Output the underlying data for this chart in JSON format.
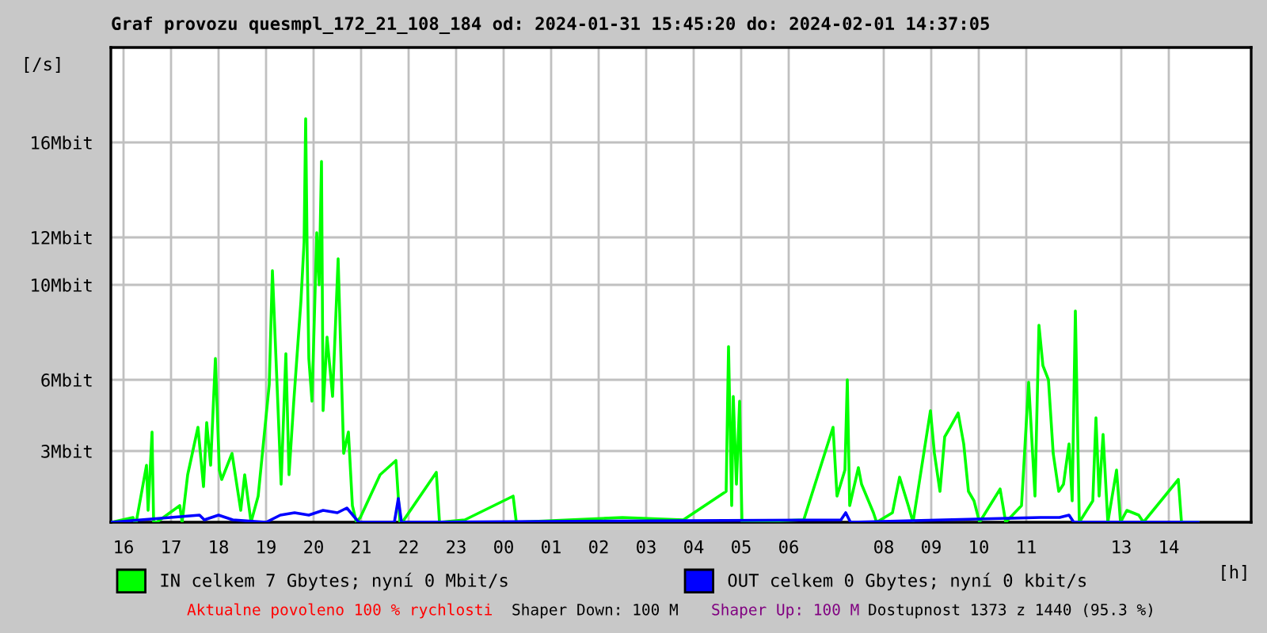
{
  "chart_data": {
    "type": "line",
    "title": "Graf provozu quesmpl_172_21_108_184 od: 2024-01-31 15:45:20 do: 2024-02-01 14:37:05",
    "xlabel": "[h]",
    "ylabel": "[/s]",
    "xlim": [
      "2024-01-31T15:44",
      "2024-02-01T15:44"
    ],
    "ylim": [
      0,
      20
    ],
    "xticks": [
      {
        "value": "2024-01-31T16:00",
        "label": "16"
      },
      {
        "value": "2024-01-31T17:00",
        "label": "17"
      },
      {
        "value": "2024-01-31T18:00",
        "label": "18"
      },
      {
        "value": "2024-01-31T19:00",
        "label": "19"
      },
      {
        "value": "2024-01-31T20:00",
        "label": "20"
      },
      {
        "value": "2024-01-31T21:00",
        "label": "21"
      },
      {
        "value": "2024-01-31T22:00",
        "label": "22"
      },
      {
        "value": "2024-01-31T23:00",
        "label": "23"
      },
      {
        "value": "2024-02-01T00:00",
        "label": "00"
      },
      {
        "value": "2024-02-01T01:00",
        "label": "01"
      },
      {
        "value": "2024-02-01T02:00",
        "label": "02"
      },
      {
        "value": "2024-02-01T03:00",
        "label": "03"
      },
      {
        "value": "2024-02-01T04:00",
        "label": "04"
      },
      {
        "value": "2024-02-01T05:00",
        "label": "05"
      },
      {
        "value": "2024-02-01T06:00",
        "label": "06"
      },
      {
        "value": "2024-02-01T08:00",
        "label": "08"
      },
      {
        "value": "2024-02-01T09:00",
        "label": "09"
      },
      {
        "value": "2024-02-01T10:00",
        "label": "10"
      },
      {
        "value": "2024-02-01T11:00",
        "label": "11"
      },
      {
        "value": "2024-02-01T13:00",
        "label": "13"
      },
      {
        "value": "2024-02-01T14:00",
        "label": "14"
      }
    ],
    "yticks": [
      {
        "value": 3,
        "label": "3Mbit"
      },
      {
        "value": 6,
        "label": "6Mbit"
      },
      {
        "value": 10,
        "label": "10Mbit"
      },
      {
        "value": 12,
        "label": "12Mbit"
      },
      {
        "value": 16,
        "label": "16Mbit"
      }
    ],
    "grid": true,
    "legend": "bottom",
    "series": [
      {
        "name": "IN celkem 7 Gbytes; nyní 0 Mbit/s",
        "color": "#00ff00",
        "x": [
          "2024-01-31T15:45",
          "2024-01-31T16:12",
          "2024-01-31T16:14",
          "2024-01-31T16:16",
          "2024-01-31T16:29",
          "2024-01-31T16:31",
          "2024-01-31T16:36",
          "2024-01-31T16:38",
          "2024-01-31T16:42",
          "2024-01-31T17:11",
          "2024-01-31T17:14",
          "2024-01-31T17:21",
          "2024-01-31T17:34",
          "2024-01-31T17:41",
          "2024-01-31T17:45",
          "2024-01-31T17:50",
          "2024-01-31T17:56",
          "2024-01-31T18:01",
          "2024-01-31T18:04",
          "2024-01-31T18:17",
          "2024-01-31T18:28",
          "2024-01-31T18:33",
          "2024-01-31T18:41",
          "2024-01-31T18:50",
          "2024-01-31T19:04",
          "2024-01-31T19:08",
          "2024-01-31T19:19",
          "2024-01-31T19:25",
          "2024-01-31T19:29",
          "2024-01-31T19:35",
          "2024-01-31T19:44",
          "2024-01-31T19:48",
          "2024-01-31T19:50",
          "2024-01-31T19:52",
          "2024-01-31T19:54",
          "2024-01-31T19:58",
          "2024-01-31T20:04",
          "2024-01-31T20:07",
          "2024-01-31T20:10",
          "2024-01-31T20:12",
          "2024-01-31T20:17",
          "2024-01-31T20:24",
          "2024-01-31T20:31",
          "2024-01-31T20:38",
          "2024-01-31T20:44",
          "2024-01-31T20:49",
          "2024-01-31T20:54",
          "2024-01-31T20:59",
          "2024-01-31T21:24",
          "2024-01-31T21:44",
          "2024-01-31T21:49",
          "2024-01-31T21:52",
          "2024-01-31T22:35",
          "2024-01-31T22:39",
          "2024-01-31T23:11",
          "2024-02-01T00:12",
          "2024-02-01T00:16",
          "2024-02-01T02:30",
          "2024-02-01T03:47",
          "2024-02-01T04:41",
          "2024-02-01T04:44",
          "2024-02-01T04:48",
          "2024-02-01T04:50",
          "2024-02-01T04:54",
          "2024-02-01T04:58",
          "2024-02-01T05:01",
          "2024-02-01T06:19",
          "2024-02-01T06:56",
          "2024-02-01T07:01",
          "2024-02-01T07:11",
          "2024-02-01T07:14",
          "2024-02-01T07:17",
          "2024-02-01T07:28",
          "2024-02-01T07:32",
          "2024-02-01T07:47",
          "2024-02-01T07:51",
          "2024-02-01T08:11",
          "2024-02-01T08:20",
          "2024-02-01T08:31",
          "2024-02-01T08:37",
          "2024-02-01T08:59",
          "2024-02-01T09:04",
          "2024-02-01T09:11",
          "2024-02-01T09:17",
          "2024-02-01T09:24",
          "2024-02-01T09:34",
          "2024-02-01T09:41",
          "2024-02-01T09:47",
          "2024-02-01T09:54",
          "2024-02-01T10:01",
          "2024-02-01T10:27",
          "2024-02-01T10:34",
          "2024-02-01T10:54",
          "2024-02-01T11:03",
          "2024-02-01T11:11",
          "2024-02-01T11:16",
          "2024-02-01T11:21",
          "2024-02-01T11:28",
          "2024-02-01T11:34",
          "2024-02-01T11:41",
          "2024-02-01T11:47",
          "2024-02-01T11:54",
          "2024-02-01T11:58",
          "2024-02-01T12:02",
          "2024-02-01T12:07",
          "2024-02-01T12:24",
          "2024-02-01T12:28",
          "2024-02-01T12:32",
          "2024-02-01T12:37",
          "2024-02-01T12:43",
          "2024-02-01T12:54",
          "2024-02-01T12:59",
          "2024-02-01T13:07",
          "2024-02-01T13:22",
          "2024-02-01T13:28",
          "2024-02-01T14:12",
          "2024-02-01T14:16",
          "2024-02-01T14:37"
        ],
        "values": [
          0,
          0.2,
          0,
          0,
          2.4,
          0.5,
          3.8,
          0,
          0,
          0.7,
          0,
          2.0,
          4.0,
          1.5,
          4.2,
          2.4,
          6.9,
          2.2,
          1.8,
          2.9,
          0.5,
          2.0,
          0,
          1.1,
          5.8,
          10.6,
          1.6,
          7.1,
          2.0,
          5.1,
          9.3,
          11.8,
          17.0,
          11.1,
          6.9,
          5.1,
          12.2,
          10.0,
          15.2,
          4.7,
          7.8,
          5.3,
          11.1,
          2.9,
          3.8,
          0.7,
          0,
          0.2,
          2.0,
          2.6,
          0,
          0,
          2.1,
          0,
          0.1,
          1.1,
          0,
          0.2,
          0.1,
          1.3,
          7.4,
          0.7,
          5.3,
          1.6,
          5.1,
          0,
          0.1,
          4.0,
          1.1,
          2.2,
          6.0,
          0.7,
          2.3,
          1.6,
          0.4,
          0,
          0.4,
          1.9,
          0.7,
          0,
          4.7,
          2.9,
          1.3,
          3.6,
          4.0,
          4.6,
          3.3,
          1.3,
          0.9,
          0,
          1.4,
          0,
          0.7,
          5.9,
          1.1,
          8.3,
          6.6,
          6.0,
          2.9,
          1.3,
          1.6,
          3.3,
          0.9,
          8.9,
          0,
          0.9,
          4.4,
          1.1,
          3.7,
          0,
          2.2,
          0,
          0.5,
          0.3,
          0,
          1.8,
          0,
          0
        ]
      },
      {
        "name": "OUT celkem 0 Gbytes; nyní 0 kbit/s",
        "color": "#0000ff",
        "x": [
          "2024-01-31T15:45",
          "2024-01-31T17:36",
          "2024-01-31T17:42",
          "2024-01-31T18:00",
          "2024-01-31T18:18",
          "2024-01-31T19:00",
          "2024-01-31T19:18",
          "2024-01-31T19:36",
          "2024-01-31T19:54",
          "2024-01-31T20:12",
          "2024-01-31T20:30",
          "2024-01-31T20:42",
          "2024-01-31T20:57",
          "2024-01-31T21:42",
          "2024-01-31T21:47",
          "2024-01-31T21:51",
          "2024-01-31T22:00",
          "2024-02-01T07:06",
          "2024-02-01T07:12",
          "2024-02-01T07:18",
          "2024-02-01T11:18",
          "2024-02-01T11:30",
          "2024-02-01T11:42",
          "2024-02-01T11:54",
          "2024-02-01T12:00",
          "2024-02-01T14:37"
        ],
        "values": [
          0,
          0.3,
          0.1,
          0.3,
          0.1,
          0,
          0.3,
          0.4,
          0.3,
          0.5,
          0.4,
          0.6,
          0,
          0,
          1.0,
          0,
          0,
          0.1,
          0.4,
          0,
          0.2,
          0.2,
          0.2,
          0.3,
          0,
          0
        ]
      }
    ],
    "annotations": [
      "Aktualne povoleno 100 % rychlosti",
      "Shaper Down: 100 M",
      "Shaper Up: 100 M",
      "Dostupnost 1373 z 1440 (95.3 %)"
    ]
  }
}
